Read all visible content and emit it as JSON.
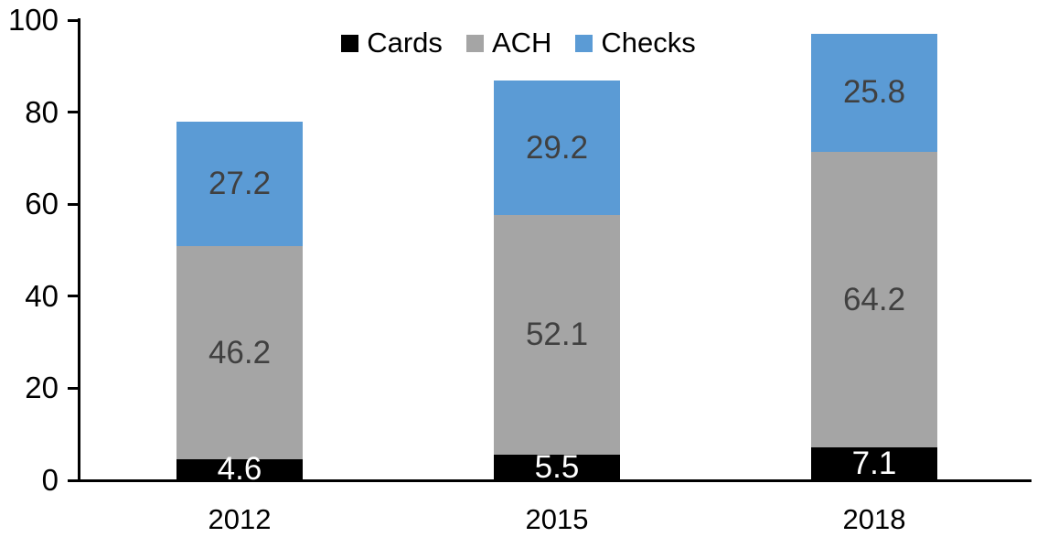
{
  "chart_data": {
    "type": "bar",
    "stacked": true,
    "title": "",
    "xlabel": "",
    "ylabel": "",
    "categories": [
      "2012",
      "2015",
      "2018"
    ],
    "series": [
      {
        "name": "Cards",
        "color": "#000000",
        "label_color": "#ffffff",
        "values": [
          4.6,
          5.5,
          7.1
        ]
      },
      {
        "name": "ACH",
        "color": "#a5a5a5",
        "label_color": "#404040",
        "values": [
          46.2,
          52.1,
          64.2
        ]
      },
      {
        "name": "Checks",
        "color": "#5b9bd5",
        "label_color": "#404040",
        "values": [
          27.2,
          29.2,
          25.8
        ]
      }
    ],
    "ylim": [
      0,
      100
    ],
    "yticks": [
      0,
      20,
      40,
      60,
      80,
      100
    ],
    "grid": false,
    "legend_position": "top-center",
    "axis_color": "#000000",
    "background_color": "#ffffff"
  }
}
